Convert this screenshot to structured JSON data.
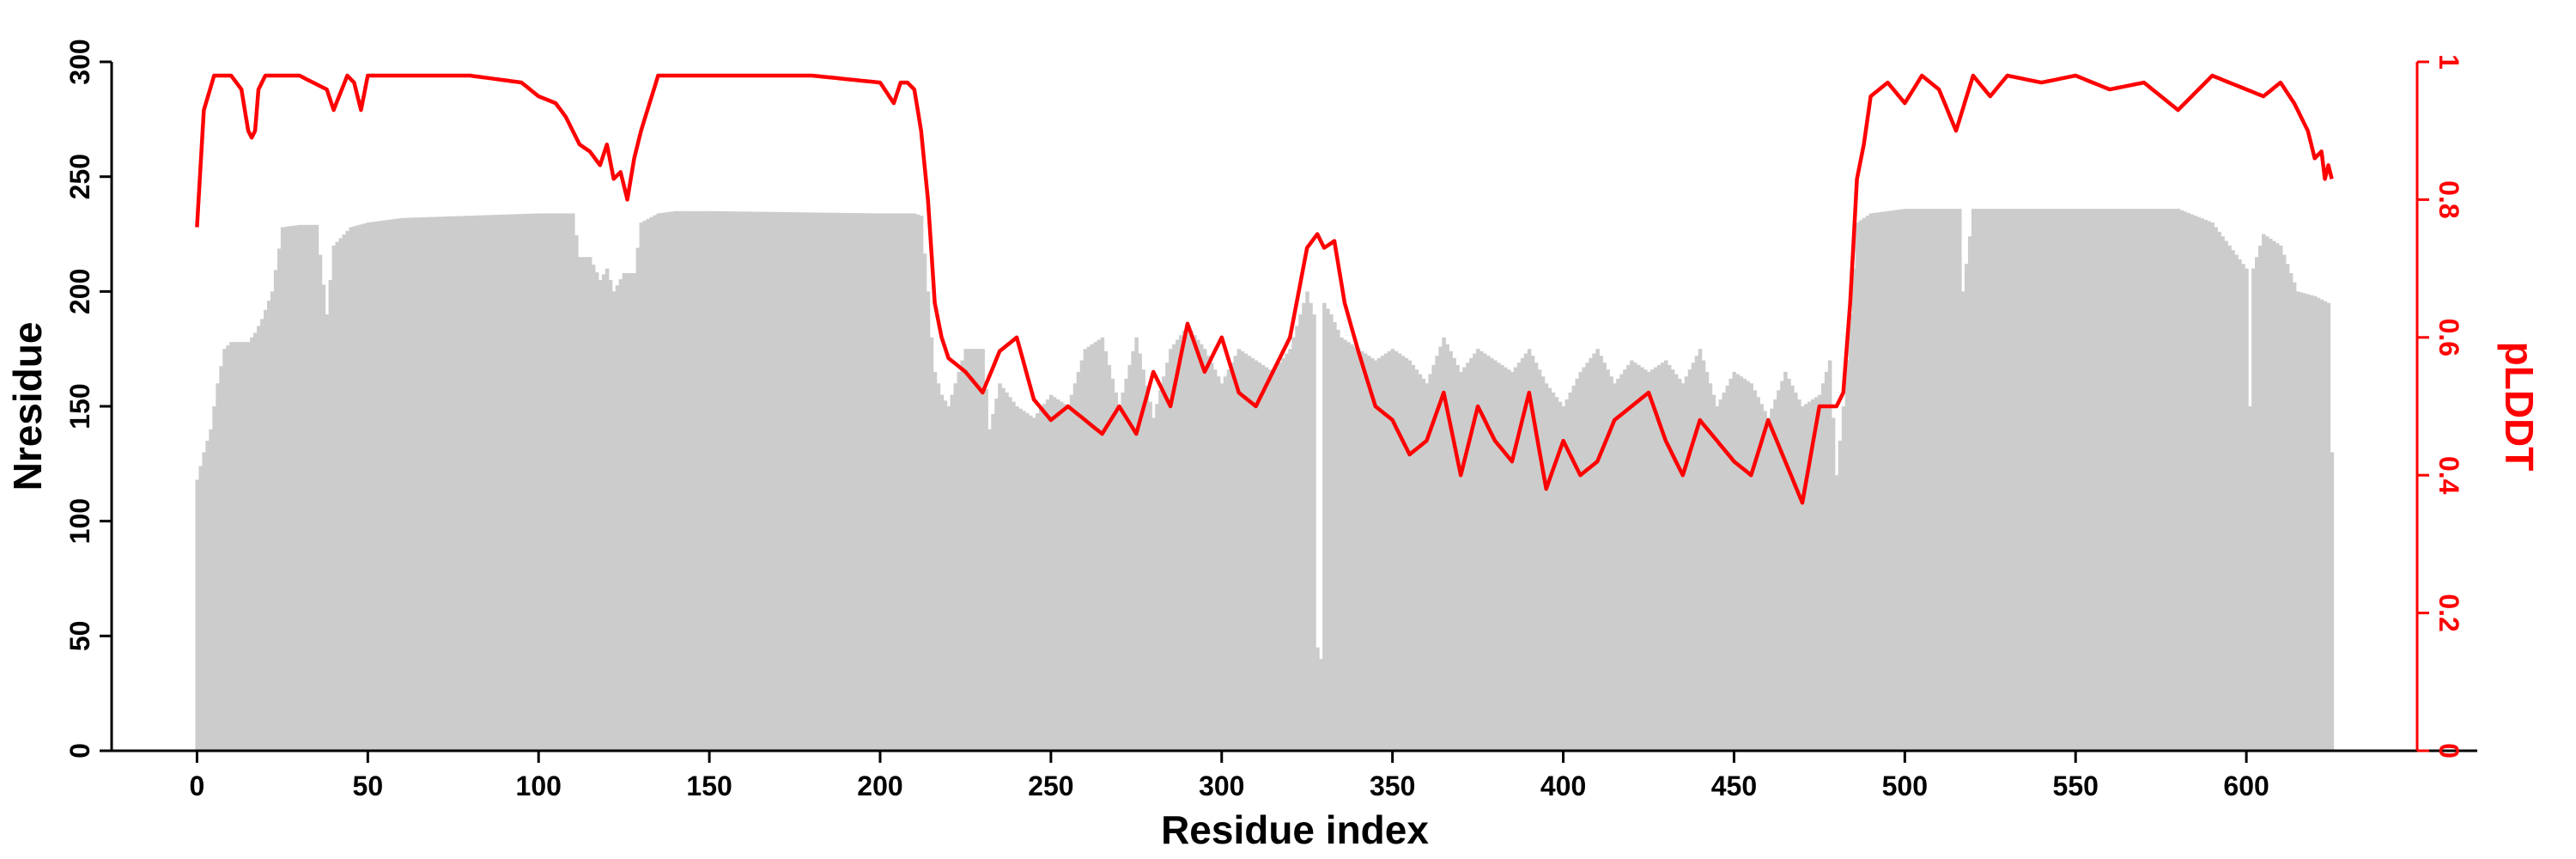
{
  "chart_data": {
    "type": "bar",
    "title": "",
    "xlabel": "Residue index",
    "ylabel": "Nresidue",
    "y2label": "pLDDT",
    "xlim": [
      -25,
      650
    ],
    "ylim": [
      0,
      300
    ],
    "y2lim": [
      0,
      1
    ],
    "x_ticks": [
      0,
      50,
      100,
      150,
      200,
      250,
      300,
      350,
      400,
      450,
      500,
      550,
      600
    ],
    "x_tick_labels": [
      "0",
      "50",
      "100",
      "150",
      "200",
      "250",
      "300",
      "350",
      "400",
      "450",
      "500",
      "550",
      "600"
    ],
    "y_ticks": [
      0,
      50,
      100,
      150,
      200,
      250,
      300
    ],
    "y_tick_labels": [
      "0",
      "50",
      "100",
      "150",
      "200",
      "250",
      "300"
    ],
    "y2_ticks": [
      0,
      0.2,
      0.4,
      0.6,
      0.8,
      1
    ],
    "y2_tick_labels": [
      "0",
      "0.2",
      "0.4",
      "0.6",
      "0.8",
      "1"
    ],
    "grid": false,
    "legend": "none",
    "colors": {
      "bars": "#cccccc",
      "plddt_line": "#ff0000",
      "right_axis": "#ff0000",
      "left_axis": "#000000"
    },
    "series": [
      {
        "axis": "left",
        "kind": "bar",
        "n_residues": 626,
        "x_step": 1,
        "anchors_x": [
          0,
          2,
          4,
          6,
          8,
          10,
          12,
          15,
          17,
          19,
          20,
          22,
          25,
          30,
          35,
          38,
          40,
          45,
          50,
          55,
          60,
          80,
          100,
          110,
          112,
          115,
          118,
          120,
          122,
          125,
          128,
          130,
          135,
          140,
          150,
          200,
          210,
          212,
          214,
          215,
          216,
          218,
          220,
          222,
          225,
          230,
          232,
          235,
          240,
          245,
          250,
          255,
          260,
          265,
          270,
          275,
          280,
          285,
          290,
          295,
          300,
          305,
          310,
          315,
          320,
          325,
          327,
          328,
          329,
          330,
          332,
          335,
          340,
          345,
          350,
          355,
          360,
          365,
          370,
          375,
          380,
          385,
          390,
          395,
          400,
          405,
          410,
          415,
          420,
          425,
          430,
          435,
          440,
          445,
          450,
          455,
          460,
          465,
          470,
          475,
          478,
          480,
          482,
          484,
          486,
          490,
          495,
          500,
          510,
          515,
          516,
          517,
          520,
          530,
          540,
          550,
          560,
          570,
          580,
          590,
          595,
          600,
          601,
          602,
          605,
          610,
          615,
          620,
          624,
          625
        ],
        "anchors_y": [
          118,
          130,
          140,
          160,
          175,
          178,
          178,
          178,
          182,
          188,
          192,
          200,
          228,
          229,
          229,
          190,
          220,
          228,
          230,
          231,
          232,
          233,
          234,
          234,
          215,
          215,
          205,
          210,
          200,
          208,
          208,
          230,
          234,
          235,
          235,
          234,
          234,
          233,
          200,
          180,
          165,
          155,
          150,
          160,
          175,
          175,
          140,
          160,
          150,
          145,
          155,
          150,
          175,
          180,
          150,
          180,
          145,
          175,
          185,
          175,
          160,
          175,
          170,
          165,
          175,
          200,
          190,
          45,
          40,
          195,
          190,
          180,
          175,
          170,
          175,
          170,
          160,
          180,
          165,
          175,
          170,
          165,
          175,
          160,
          150,
          165,
          175,
          160,
          170,
          165,
          170,
          160,
          175,
          150,
          165,
          160,
          145,
          165,
          150,
          155,
          170,
          120,
          150,
          190,
          230,
          234,
          235,
          236,
          236,
          236,
          236,
          200,
          236,
          236,
          236,
          236,
          236,
          236,
          236,
          230,
          220,
          210,
          150,
          210,
          225,
          220,
          200,
          198,
          195,
          130
        ]
      },
      {
        "axis": "right",
        "kind": "line",
        "n_residues": 626,
        "x_step": 1,
        "anchors_x": [
          0,
          2,
          5,
          10,
          13,
          15,
          16,
          17,
          18,
          20,
          30,
          38,
          40,
          44,
          46,
          48,
          50,
          60,
          80,
          95,
          100,
          105,
          108,
          110,
          112,
          115,
          118,
          120,
          122,
          124,
          126,
          128,
          130,
          135,
          140,
          150,
          180,
          200,
          204,
          206,
          208,
          210,
          212,
          214,
          216,
          218,
          220,
          225,
          230,
          235,
          240,
          245,
          250,
          255,
          260,
          265,
          270,
          275,
          280,
          285,
          290,
          295,
          300,
          305,
          310,
          315,
          320,
          325,
          328,
          330,
          333,
          336,
          340,
          345,
          350,
          355,
          360,
          365,
          370,
          375,
          380,
          385,
          390,
          395,
          400,
          405,
          410,
          415,
          420,
          425,
          430,
          435,
          440,
          445,
          450,
          455,
          460,
          465,
          470,
          475,
          480,
          482,
          484,
          486,
          488,
          490,
          495,
          500,
          505,
          510,
          515,
          520,
          525,
          530,
          540,
          550,
          560,
          570,
          580,
          590,
          600,
          605,
          610,
          614,
          618,
          620,
          622,
          623,
          624,
          625
        ],
        "anchors_y": [
          0.76,
          0.93,
          0.98,
          0.98,
          0.96,
          0.9,
          0.89,
          0.9,
          0.96,
          0.98,
          0.98,
          0.96,
          0.93,
          0.98,
          0.97,
          0.93,
          0.98,
          0.98,
          0.98,
          0.97,
          0.95,
          0.94,
          0.92,
          0.9,
          0.88,
          0.87,
          0.85,
          0.88,
          0.83,
          0.84,
          0.8,
          0.86,
          0.9,
          0.98,
          0.98,
          0.98,
          0.98,
          0.97,
          0.94,
          0.97,
          0.97,
          0.96,
          0.9,
          0.8,
          0.65,
          0.6,
          0.57,
          0.55,
          0.52,
          0.58,
          0.6,
          0.51,
          0.48,
          0.5,
          0.48,
          0.46,
          0.5,
          0.46,
          0.55,
          0.5,
          0.62,
          0.55,
          0.6,
          0.52,
          0.5,
          0.55,
          0.6,
          0.73,
          0.75,
          0.73,
          0.74,
          0.65,
          0.58,
          0.5,
          0.48,
          0.43,
          0.45,
          0.52,
          0.4,
          0.5,
          0.45,
          0.42,
          0.52,
          0.38,
          0.45,
          0.4,
          0.42,
          0.48,
          0.5,
          0.52,
          0.45,
          0.4,
          0.48,
          0.45,
          0.42,
          0.4,
          0.48,
          0.42,
          0.36,
          0.5,
          0.5,
          0.52,
          0.65,
          0.83,
          0.88,
          0.95,
          0.97,
          0.94,
          0.98,
          0.96,
          0.9,
          0.98,
          0.95,
          0.98,
          0.97,
          0.98,
          0.96,
          0.97,
          0.93,
          0.98,
          0.96,
          0.95,
          0.97,
          0.94,
          0.9,
          0.86,
          0.87,
          0.83,
          0.85,
          0.83
        ]
      }
    ]
  }
}
